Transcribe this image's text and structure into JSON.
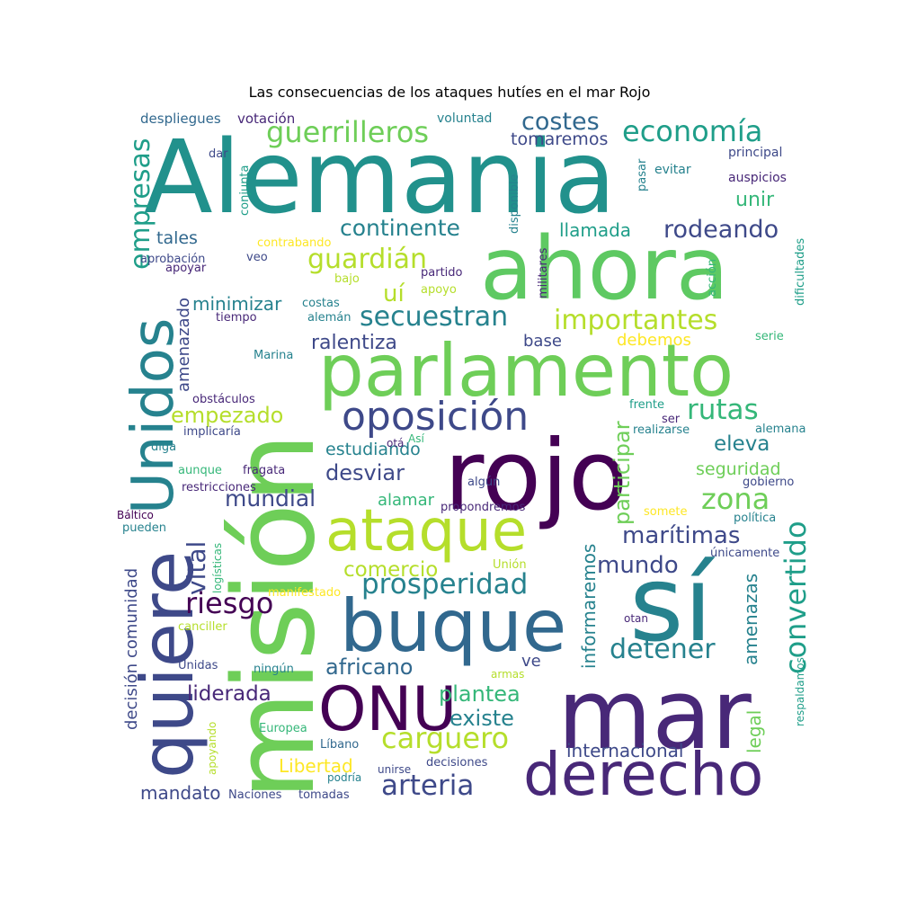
{
  "title": "Las consecuencias de los ataques hutíes en el mar Rojo",
  "palette": [
    "#440154",
    "#482878",
    "#3e4989",
    "#31688e",
    "#26828e",
    "#1f9e89",
    "#35b779",
    "#6ece58",
    "#b5de2b",
    "#fde725"
  ],
  "words": [
    {
      "text": "Alemania",
      "weight": 1.0,
      "color": "#21918c",
      "vertical": false
    },
    {
      "text": "mar",
      "weight": 0.95,
      "color": "#482878",
      "vertical": false
    },
    {
      "text": "misión",
      "weight": 0.95,
      "color": "#6ece58",
      "vertical": true
    },
    {
      "text": "sí",
      "weight": 0.9,
      "color": "#26828e",
      "vertical": false
    },
    {
      "text": "rojo",
      "weight": 0.88,
      "color": "#440154",
      "vertical": false
    },
    {
      "text": "ahora",
      "weight": 0.8,
      "color": "#5ec962",
      "vertical": false
    },
    {
      "text": "parlamento",
      "weight": 0.72,
      "color": "#6ece58",
      "vertical": false
    },
    {
      "text": "quiere",
      "weight": 0.7,
      "color": "#3e4989",
      "vertical": true
    },
    {
      "text": "buque",
      "weight": 0.7,
      "color": "#31688e",
      "vertical": false
    },
    {
      "text": "ONU",
      "weight": 0.62,
      "color": "#440154",
      "vertical": false
    },
    {
      "text": "Unidos",
      "weight": 0.6,
      "color": "#26828e",
      "vertical": true
    },
    {
      "text": "derecho",
      "weight": 0.58,
      "color": "#482878",
      "vertical": false
    },
    {
      "text": "ataque",
      "weight": 0.55,
      "color": "#b5de2b",
      "vertical": false
    },
    {
      "text": "oposición",
      "weight": 0.42,
      "color": "#3e4989",
      "vertical": false
    },
    {
      "text": "economía",
      "weight": 0.35,
      "color": "#1f9e89",
      "vertical": false
    },
    {
      "text": "guerrilleros",
      "weight": 0.35,
      "color": "#6ece58",
      "vertical": false
    },
    {
      "text": "convertido",
      "weight": 0.34,
      "color": "#1f9e89",
      "vertical": true
    },
    {
      "text": "carguero",
      "weight": 0.34,
      "color": "#b5de2b",
      "vertical": false
    },
    {
      "text": "empresas",
      "weight": 0.33,
      "color": "#1f9e89",
      "vertical": true
    },
    {
      "text": "prosperidad",
      "weight": 0.33,
      "color": "#26828e",
      "vertical": false
    },
    {
      "text": "arteria",
      "weight": 0.33,
      "color": "#3e4989",
      "vertical": false
    },
    {
      "text": "importantes",
      "weight": 0.32,
      "color": "#b5de2b",
      "vertical": false
    },
    {
      "text": "secuestran",
      "weight": 0.32,
      "color": "#26828e",
      "vertical": false
    },
    {
      "text": "rutas",
      "weight": 0.32,
      "color": "#35b779",
      "vertical": false
    },
    {
      "text": "guardián",
      "weight": 0.31,
      "color": "#b5de2b",
      "vertical": false
    },
    {
      "text": "detener",
      "weight": 0.31,
      "color": "#26828e",
      "vertical": false
    },
    {
      "text": "riesgo",
      "weight": 0.31,
      "color": "#440154",
      "vertical": false
    },
    {
      "text": "zona",
      "weight": 0.31,
      "color": "#6ece58",
      "vertical": false
    },
    {
      "text": "vital",
      "weight": 0.3,
      "color": "#3e4989",
      "vertical": true
    },
    {
      "text": "costes",
      "weight": 0.28,
      "color": "#31688e",
      "vertical": false
    },
    {
      "text": "rodeando",
      "weight": 0.28,
      "color": "#3e4989",
      "vertical": false
    },
    {
      "text": "marítimas",
      "weight": 0.27,
      "color": "#3e4989",
      "vertical": false
    },
    {
      "text": "mundo",
      "weight": 0.27,
      "color": "#3e4989",
      "vertical": false
    },
    {
      "text": "continente",
      "weight": 0.26,
      "color": "#26828e",
      "vertical": false
    },
    {
      "text": "uí",
      "weight": 0.26,
      "color": "#b5de2b",
      "vertical": false
    },
    {
      "text": "mundial",
      "weight": 0.26,
      "color": "#3e4989",
      "vertical": false
    },
    {
      "text": "participar",
      "weight": 0.26,
      "color": "#6ece58",
      "vertical": true
    },
    {
      "text": "empezado",
      "weight": 0.25,
      "color": "#b5de2b",
      "vertical": false
    },
    {
      "text": "plantea",
      "weight": 0.25,
      "color": "#35b779",
      "vertical": false
    },
    {
      "text": "existe",
      "weight": 0.25,
      "color": "#26828e",
      "vertical": false
    },
    {
      "text": "desviar",
      "weight": 0.25,
      "color": "#3e4989",
      "vertical": false
    },
    {
      "text": "africano",
      "weight": 0.25,
      "color": "#31688e",
      "vertical": false
    },
    {
      "text": "liderada",
      "weight": 0.24,
      "color": "#482878",
      "vertical": false
    },
    {
      "text": "comercio",
      "weight": 0.24,
      "color": "#b5de2b",
      "vertical": false
    },
    {
      "text": "eleva",
      "weight": 0.24,
      "color": "#26828e",
      "vertical": false
    },
    {
      "text": "ralentiza",
      "weight": 0.22,
      "color": "#3e4989",
      "vertical": false
    },
    {
      "text": "unir",
      "weight": 0.22,
      "color": "#35b779",
      "vertical": false
    },
    {
      "text": "informaremos",
      "weight": 0.22,
      "color": "#26828e",
      "vertical": true
    },
    {
      "text": "amenazas",
      "weight": 0.2,
      "color": "#26828e",
      "vertical": true
    },
    {
      "text": "llamada",
      "weight": 0.2,
      "color": "#1f9e89",
      "vertical": false
    },
    {
      "text": "mandato",
      "weight": 0.2,
      "color": "#3e4989",
      "vertical": false
    },
    {
      "text": "internacional",
      "weight": 0.2,
      "color": "#3e4989",
      "vertical": false
    },
    {
      "text": "legal",
      "weight": 0.2,
      "color": "#6ece58",
      "vertical": true
    },
    {
      "text": "Libertad",
      "weight": 0.2,
      "color": "#fde725",
      "vertical": false
    },
    {
      "text": "minimizar",
      "weight": 0.2,
      "color": "#26828e",
      "vertical": false
    },
    {
      "text": "estudiando",
      "weight": 0.19,
      "color": "#26828e",
      "vertical": false
    },
    {
      "text": "tomaremos",
      "weight": 0.19,
      "color": "#3e4989",
      "vertical": false
    },
    {
      "text": "seguridad",
      "weight": 0.19,
      "color": "#6ece58",
      "vertical": false
    },
    {
      "text": "tales",
      "weight": 0.19,
      "color": "#31688e",
      "vertical": false
    },
    {
      "text": "decisión",
      "weight": 0.18,
      "color": "#3e4989",
      "vertical": true
    },
    {
      "text": "comunidad",
      "weight": 0.18,
      "color": "#3e4989",
      "vertical": true
    },
    {
      "text": "alamar",
      "weight": 0.18,
      "color": "#35b779",
      "vertical": false
    },
    {
      "text": "debemos",
      "weight": 0.18,
      "color": "#fde725",
      "vertical": false
    },
    {
      "text": "ve",
      "weight": 0.18,
      "color": "#3e4989",
      "vertical": false
    },
    {
      "text": "base",
      "weight": 0.18,
      "color": "#3e4989",
      "vertical": false
    },
    {
      "text": "amenazado",
      "weight": 0.18,
      "color": "#3e4989",
      "vertical": true
    },
    {
      "text": "despliegues",
      "weight": 0.15,
      "color": "#31688e",
      "vertical": false
    },
    {
      "text": "votación",
      "weight": 0.15,
      "color": "#482878",
      "vertical": false
    },
    {
      "text": "voluntad",
      "weight": 0.14,
      "color": "#26828e",
      "vertical": false
    },
    {
      "text": "principal",
      "weight": 0.14,
      "color": "#3e4989",
      "vertical": false
    },
    {
      "text": "auspicios",
      "weight": 0.14,
      "color": "#482878",
      "vertical": false
    },
    {
      "text": "evitar",
      "weight": 0.14,
      "color": "#26828e",
      "vertical": false
    },
    {
      "text": "dar",
      "weight": 0.13,
      "color": "#3e4989",
      "vertical": false
    },
    {
      "text": "conjunta",
      "weight": 0.13,
      "color": "#1f9e89",
      "vertical": true
    },
    {
      "text": "disponible",
      "weight": 0.13,
      "color": "#26828e",
      "vertical": true
    },
    {
      "text": "pasar",
      "weight": 0.13,
      "color": "#26828e",
      "vertical": true
    },
    {
      "text": "contrabando",
      "weight": 0.13,
      "color": "#fde725",
      "vertical": false
    },
    {
      "text": "veo",
      "weight": 0.13,
      "color": "#3e4989",
      "vertical": false
    },
    {
      "text": "aprobación",
      "weight": 0.13,
      "color": "#3e4989",
      "vertical": false
    },
    {
      "text": "apoyar",
      "weight": 0.13,
      "color": "#482878",
      "vertical": false
    },
    {
      "text": "militares",
      "weight": 0.13,
      "color": "#482878",
      "vertical": true
    },
    {
      "text": "partido",
      "weight": 0.13,
      "color": "#482878",
      "vertical": false
    },
    {
      "text": "bajo",
      "weight": 0.13,
      "color": "#b5de2b",
      "vertical": false
    },
    {
      "text": "apoyo",
      "weight": 0.13,
      "color": "#b5de2b",
      "vertical": false
    },
    {
      "text": "acción",
      "weight": 0.13,
      "color": "#35b779",
      "vertical": true
    },
    {
      "text": "dificultades",
      "weight": 0.13,
      "color": "#1f9e89",
      "vertical": true
    },
    {
      "text": "costas",
      "weight": 0.13,
      "color": "#26828e",
      "vertical": false
    },
    {
      "text": "tiempo",
      "weight": 0.13,
      "color": "#482878",
      "vertical": false
    },
    {
      "text": "alemán",
      "weight": 0.13,
      "color": "#26828e",
      "vertical": false
    },
    {
      "text": "serie",
      "weight": 0.13,
      "color": "#35b779",
      "vertical": false
    },
    {
      "text": "Marina",
      "weight": 0.13,
      "color": "#26828e",
      "vertical": false
    },
    {
      "text": "obstáculos",
      "weight": 0.13,
      "color": "#482878",
      "vertical": false
    },
    {
      "text": "implicaría",
      "weight": 0.13,
      "color": "#3e4989",
      "vertical": false
    },
    {
      "text": "diga",
      "weight": 0.13,
      "color": "#26828e",
      "vertical": false
    },
    {
      "text": "Así",
      "weight": 0.12,
      "color": "#35b779",
      "vertical": false
    },
    {
      "text": "otá",
      "weight": 0.12,
      "color": "#482878",
      "vertical": false
    },
    {
      "text": "frente",
      "weight": 0.13,
      "color": "#1f9e89",
      "vertical": false
    },
    {
      "text": "ser",
      "weight": 0.13,
      "color": "#482878",
      "vertical": false
    },
    {
      "text": "alemana",
      "weight": 0.13,
      "color": "#26828e",
      "vertical": false
    },
    {
      "text": "realizarse",
      "weight": 0.13,
      "color": "#26828e",
      "vertical": false
    },
    {
      "text": "aunque",
      "weight": 0.13,
      "color": "#35b779",
      "vertical": false
    },
    {
      "text": "fragata",
      "weight": 0.13,
      "color": "#482878",
      "vertical": false
    },
    {
      "text": "algún",
      "weight": 0.13,
      "color": "#3e4989",
      "vertical": false
    },
    {
      "text": "gobierno",
      "weight": 0.13,
      "color": "#3e4989",
      "vertical": false
    },
    {
      "text": "restricciones",
      "weight": 0.13,
      "color": "#482878",
      "vertical": false
    },
    {
      "text": "Báltico",
      "weight": 0.12,
      "color": "#440154",
      "vertical": false
    },
    {
      "text": "pueden",
      "weight": 0.13,
      "color": "#26828e",
      "vertical": false
    },
    {
      "text": "logísticas",
      "weight": 0.12,
      "color": "#35b779",
      "vertical": true
    },
    {
      "text": "propondremos",
      "weight": 0.13,
      "color": "#482878",
      "vertical": false
    },
    {
      "text": "somete",
      "weight": 0.13,
      "color": "#fde725",
      "vertical": false
    },
    {
      "text": "política",
      "weight": 0.13,
      "color": "#26828e",
      "vertical": false
    },
    {
      "text": "únicamente",
      "weight": 0.13,
      "color": "#3e4989",
      "vertical": false
    },
    {
      "text": "Unión",
      "weight": 0.13,
      "color": "#b5de2b",
      "vertical": false
    },
    {
      "text": "manifestado",
      "weight": 0.13,
      "color": "#fde725",
      "vertical": false
    },
    {
      "text": "canciller",
      "weight": 0.13,
      "color": "#b5de2b",
      "vertical": false
    },
    {
      "text": "otan",
      "weight": 0.12,
      "color": "#482878",
      "vertical": false
    },
    {
      "text": "respaldamos",
      "weight": 0.12,
      "color": "#1f9e89",
      "vertical": true
    },
    {
      "text": "Unidas",
      "weight": 0.13,
      "color": "#3e4989",
      "vertical": false
    },
    {
      "text": "ningún",
      "weight": 0.13,
      "color": "#26828e",
      "vertical": false
    },
    {
      "text": "armas",
      "weight": 0.12,
      "color": "#b5de2b",
      "vertical": false
    },
    {
      "text": "apoyando",
      "weight": 0.12,
      "color": "#b5de2b",
      "vertical": true
    },
    {
      "text": "Europea",
      "weight": 0.13,
      "color": "#35b779",
      "vertical": false
    },
    {
      "text": "Líbano",
      "weight": 0.13,
      "color": "#31688e",
      "vertical": false
    },
    {
      "text": "podría",
      "weight": 0.12,
      "color": "#26828e",
      "vertical": false
    },
    {
      "text": "unirse",
      "weight": 0.12,
      "color": "#3e4989",
      "vertical": false
    },
    {
      "text": "decisiones",
      "weight": 0.13,
      "color": "#3e4989",
      "vertical": false
    },
    {
      "text": "Naciones",
      "weight": 0.13,
      "color": "#3e4989",
      "vertical": false
    },
    {
      "text": "tomadas",
      "weight": 0.13,
      "color": "#3e4989",
      "vertical": false
    }
  ]
}
